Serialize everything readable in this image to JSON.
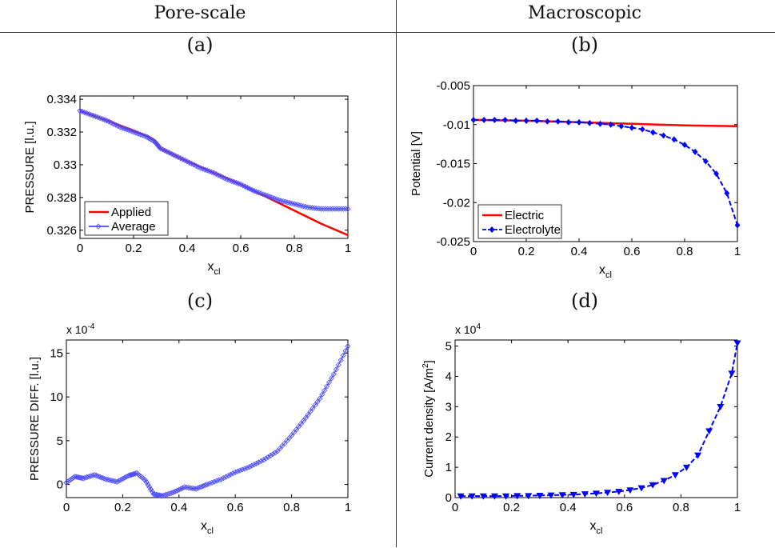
{
  "headers": {
    "left": "Pore-scale",
    "right": "Macroscopic"
  },
  "panel_labels": {
    "a": "(a)",
    "b": "(b)",
    "c": "(c)",
    "d": "(d)"
  },
  "colors": {
    "red": "#ff0000",
    "blue": "#0000ff",
    "blue_light": "#4a4aff"
  },
  "chart_data": [
    {
      "id": "a",
      "type": "line",
      "xlabel": "x",
      "xlabel_sub": "cl",
      "ylabel": "PRESSURE [l.u.]",
      "xlim": [
        0,
        1
      ],
      "ylim": [
        0.3255,
        0.3342
      ],
      "xticks": [
        0,
        0.2,
        0.4,
        0.6,
        0.8,
        1
      ],
      "xtick_labels": [
        "0",
        "0.2",
        "0.4",
        "0.6",
        "0.8",
        "1"
      ],
      "yticks": [
        0.326,
        0.328,
        0.33,
        0.332,
        0.334
      ],
      "ytick_labels": [
        "0.326",
        "0.328",
        "0.33",
        "0.332",
        "0.334"
      ],
      "legend": {
        "position": "bottom-left",
        "entries": [
          "Applied",
          "Average"
        ]
      },
      "series": [
        {
          "name": "Applied",
          "color": "#ff0000",
          "style": "solid",
          "x": [
            0,
            0.1,
            0.2,
            0.27,
            0.3,
            0.4,
            0.5,
            0.6,
            0.7,
            0.8,
            0.9,
            1.0
          ],
          "y": [
            0.3333,
            0.3327,
            0.3321,
            0.3316,
            0.331,
            0.3302,
            0.3295,
            0.3288,
            0.328,
            0.3272,
            0.3264,
            0.3257
          ]
        },
        {
          "name": "Average",
          "color": "#4a4aff",
          "style": "diamond",
          "x": [
            0,
            0.05,
            0.1,
            0.15,
            0.2,
            0.25,
            0.28,
            0.3,
            0.35,
            0.4,
            0.45,
            0.5,
            0.55,
            0.6,
            0.65,
            0.7,
            0.75,
            0.8,
            0.85,
            0.9,
            0.95,
            1.0
          ],
          "y": [
            0.3333,
            0.333,
            0.3327,
            0.3323,
            0.332,
            0.3317,
            0.3314,
            0.331,
            0.3306,
            0.3302,
            0.3298,
            0.3295,
            0.3291,
            0.3288,
            0.3284,
            0.3281,
            0.3278,
            0.3276,
            0.3274,
            0.3273,
            0.3273,
            0.3273
          ]
        }
      ]
    },
    {
      "id": "b",
      "type": "line",
      "xlabel": "x",
      "xlabel_sub": "cl",
      "ylabel": "Potential [V]",
      "xlim": [
        0,
        1
      ],
      "ylim": [
        -0.025,
        -0.005
      ],
      "xticks": [
        0,
        0.2,
        0.4,
        0.6,
        0.8,
        1
      ],
      "xtick_labels": [
        "0",
        "0.2",
        "0.4",
        "0.6",
        "0.8",
        "1"
      ],
      "yticks": [
        -0.025,
        -0.02,
        -0.015,
        -0.01,
        -0.005
      ],
      "ytick_labels": [
        "-0.025",
        "-0.02",
        "-0.015",
        "-0.01",
        "-0.005"
      ],
      "legend": {
        "position": "bottom-left",
        "entries": [
          "Electric",
          "Electrolyte"
        ]
      },
      "series": [
        {
          "name": "Electric",
          "color": "#ff0000",
          "style": "solid",
          "x": [
            0,
            0.2,
            0.4,
            0.6,
            0.8,
            1.0
          ],
          "y": [
            -0.0094,
            -0.0095,
            -0.0097,
            -0.0099,
            -0.0101,
            -0.0102
          ]
        },
        {
          "name": "Electrolyte",
          "color": "#0000ff",
          "style": "dashed-dot",
          "x": [
            0,
            0.04,
            0.08,
            0.12,
            0.16,
            0.2,
            0.24,
            0.28,
            0.32,
            0.36,
            0.4,
            0.44,
            0.48,
            0.52,
            0.56,
            0.6,
            0.64,
            0.68,
            0.72,
            0.76,
            0.8,
            0.84,
            0.88,
            0.92,
            0.96,
            1.0
          ],
          "y": [
            -0.0094,
            -0.0094,
            -0.0094,
            -0.0094,
            -0.0095,
            -0.0095,
            -0.0095,
            -0.0096,
            -0.0096,
            -0.0097,
            -0.0097,
            -0.0098,
            -0.0099,
            -0.01,
            -0.0102,
            -0.0104,
            -0.0106,
            -0.011,
            -0.0114,
            -0.0119,
            -0.0126,
            -0.0135,
            -0.0147,
            -0.0163,
            -0.0188,
            -0.0229
          ]
        }
      ]
    },
    {
      "id": "c",
      "type": "line",
      "xlabel": "x",
      "xlabel_sub": "cl",
      "ylabel": "PRESSURE DIFF. [l.u.]",
      "multiplier": "x 10",
      "multiplier_exp": "-4",
      "xlim": [
        0,
        1
      ],
      "ylim": [
        -1.5,
        16.5
      ],
      "xticks": [
        0,
        0.2,
        0.4,
        0.6,
        0.8,
        1
      ],
      "xtick_labels": [
        "0",
        "0.2",
        "0.4",
        "0.6",
        "0.8",
        "1"
      ],
      "yticks": [
        0,
        5,
        10,
        15
      ],
      "ytick_labels": [
        "0",
        "5",
        "10",
        "15"
      ],
      "series": [
        {
          "color": "#4a4aff",
          "style": "diamond",
          "x": [
            0,
            0.03,
            0.06,
            0.1,
            0.14,
            0.18,
            0.22,
            0.25,
            0.28,
            0.31,
            0.34,
            0.38,
            0.42,
            0.46,
            0.5,
            0.55,
            0.6,
            0.65,
            0.7,
            0.75,
            0.8,
            0.85,
            0.9,
            0.95,
            1.0
          ],
          "y": [
            0.2,
            0.9,
            0.7,
            1.1,
            0.6,
            0.3,
            1.0,
            1.3,
            0.5,
            -1.1,
            -1.3,
            -0.9,
            -0.3,
            -0.5,
            0.0,
            0.6,
            1.4,
            2.0,
            2.8,
            3.8,
            5.6,
            7.6,
            9.8,
            12.6,
            15.8
          ]
        }
      ]
    },
    {
      "id": "d",
      "type": "line",
      "xlabel": "x",
      "xlabel_sub": "cl",
      "ylabel": "Current density [A/m",
      "ylabel_sup": "2",
      "ylabel_end": "]",
      "multiplier": "x 10",
      "multiplier_exp": "4",
      "xlim": [
        0,
        1
      ],
      "ylim": [
        0,
        5.2
      ],
      "xticks": [
        0,
        0.2,
        0.4,
        0.6,
        0.8,
        1
      ],
      "xtick_labels": [
        "0",
        "0.2",
        "0.4",
        "0.6",
        "0.8",
        "1"
      ],
      "yticks": [
        0,
        1,
        2,
        3,
        4,
        5
      ],
      "ytick_labels": [
        "0",
        "1",
        "2",
        "3",
        "4",
        "5"
      ],
      "series": [
        {
          "color": "#0000ff",
          "style": "dashed-triangle",
          "x": [
            0.02,
            0.06,
            0.1,
            0.14,
            0.18,
            0.22,
            0.26,
            0.3,
            0.34,
            0.38,
            0.42,
            0.46,
            0.5,
            0.54,
            0.58,
            0.62,
            0.66,
            0.7,
            0.74,
            0.78,
            0.82,
            0.86,
            0.9,
            0.94,
            0.98,
            1.0
          ],
          "y": [
            0.05,
            0.05,
            0.05,
            0.05,
            0.05,
            0.06,
            0.06,
            0.07,
            0.08,
            0.09,
            0.1,
            0.12,
            0.14,
            0.17,
            0.2,
            0.25,
            0.32,
            0.42,
            0.56,
            0.75,
            1.0,
            1.4,
            2.2,
            3.0,
            4.1,
            5.1
          ]
        }
      ]
    }
  ]
}
